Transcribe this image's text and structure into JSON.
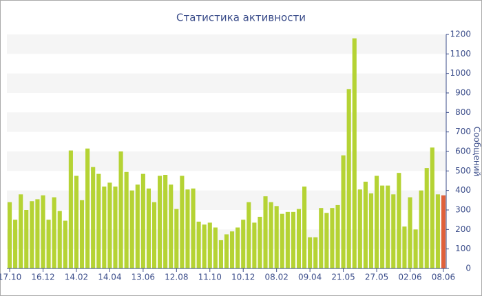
{
  "chart_data": {
    "type": "bar",
    "title": "Статистика активности",
    "y_label": "Сообщений",
    "categories": [
      "17.10",
      null,
      null,
      null,
      null,
      null,
      "16.12",
      null,
      null,
      null,
      null,
      null,
      "14.02",
      null,
      null,
      null,
      null,
      null,
      "14.04",
      null,
      null,
      null,
      null,
      null,
      "13.06",
      null,
      null,
      null,
      null,
      null,
      "12.08",
      null,
      null,
      null,
      null,
      null,
      "11.10",
      null,
      null,
      null,
      null,
      null,
      "10.12",
      null,
      null,
      null,
      null,
      null,
      "08.02",
      null,
      null,
      null,
      null,
      null,
      "09.04",
      null,
      null,
      null,
      null,
      null,
      "21.05",
      null,
      null,
      null,
      null,
      null,
      "27.05",
      null,
      null,
      null,
      null,
      null,
      "02.06",
      null,
      null,
      null,
      null,
      null,
      "08.06"
    ],
    "values": [
      340,
      250,
      380,
      300,
      345,
      355,
      375,
      250,
      365,
      295,
      245,
      605,
      475,
      350,
      615,
      520,
      485,
      420,
      440,
      420,
      600,
      495,
      400,
      430,
      485,
      410,
      340,
      475,
      480,
      430,
      305,
      475,
      405,
      410,
      240,
      225,
      235,
      210,
      145,
      175,
      190,
      210,
      250,
      340,
      235,
      265,
      370,
      340,
      320,
      280,
      290,
      290,
      305,
      420,
      160,
      160,
      310,
      285,
      310,
      325,
      580,
      920,
      1180,
      405,
      445,
      385,
      475,
      425,
      425,
      380,
      490,
      215,
      365,
      200,
      400,
      515,
      620,
      380,
      375
    ],
    "color": "#b5d334",
    "highlight_index": 78,
    "highlight_color": "#e0603a",
    "ylim": [
      0,
      1200
    ],
    "yticks": [
      0,
      100,
      200,
      300,
      400,
      500,
      600,
      700,
      800,
      900,
      1000,
      1100,
      1200
    ],
    "grid": "bands"
  }
}
